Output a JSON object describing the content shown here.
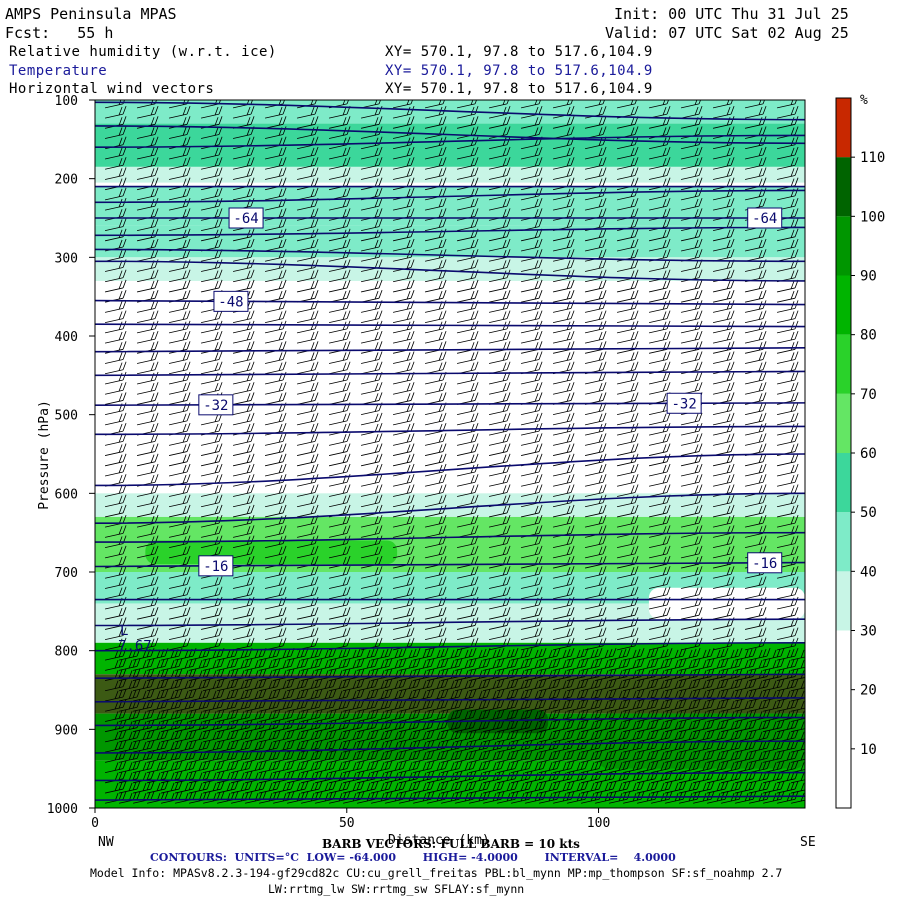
{
  "header": {
    "title": "AMPS Peninsula MPAS",
    "init": "Init: 00 UTC Thu 31 Jul 25",
    "fcst": "Fcst:   55 h",
    "valid": "Valid: 07 UTC Sat 02 Aug 25",
    "fields": [
      {
        "name": "Relative humidity (w.r.t. ice)",
        "xy": "XY= 570.1, 97.8 to 517.6,104.9",
        "color": "#000000"
      },
      {
        "name": "Temperature",
        "xy": "XY= 570.1, 97.8 to 517.6,104.9",
        "color": "#1a1a9a"
      },
      {
        "name": "Horizontal wind vectors",
        "xy": "XY= 570.1, 97.8 to 517.6,104.9",
        "color": "#000000"
      }
    ]
  },
  "chart_data": {
    "type": "heatmap",
    "subtype": "vertical cross-section",
    "ylabel": "Pressure (hPa)",
    "xlabel": "Distance (km)",
    "y_axis": {
      "ticks": [
        100,
        200,
        300,
        400,
        500,
        600,
        700,
        800,
        900,
        1000
      ],
      "range": [
        100,
        1000
      ],
      "inverted": true
    },
    "x_axis": {
      "ticks": [
        0,
        50,
        100
      ],
      "range": [
        0,
        141
      ],
      "left_label": "NW",
      "right_label": "SE"
    },
    "colorbar": {
      "unit": "%",
      "levels": [
        10,
        20,
        30,
        40,
        50,
        60,
        70,
        80,
        90,
        100,
        110
      ],
      "colors": [
        "#ffffff",
        "#ffffff",
        "#ffffff",
        "#c8f5e6",
        "#7eebc8",
        "#3cd79b",
        "#64e664",
        "#2ad22a",
        "#00b400",
        "#009600",
        "#006400",
        "#3c5a14",
        "#c82800"
      ]
    },
    "rh_layers": [
      {
        "p_top": 100,
        "p_bottom": 130,
        "rh": 40
      },
      {
        "p_top": 130,
        "p_bottom": 185,
        "rh": 55
      },
      {
        "p_top": 185,
        "p_bottom": 205,
        "rh": 35
      },
      {
        "p_top": 210,
        "p_bottom": 260,
        "rh": 45
      },
      {
        "p_top": 260,
        "p_bottom": 300,
        "rh": 40
      },
      {
        "p_top": 300,
        "p_bottom": 330,
        "rh": 30
      },
      {
        "p_top": 600,
        "p_bottom": 630,
        "rh": 30
      },
      {
        "p_top": 630,
        "p_bottom": 700,
        "rh": 60
      },
      {
        "p_top": 700,
        "p_bottom": 740,
        "rh": 45
      },
      {
        "p_top": 740,
        "p_bottom": 790,
        "rh": 35
      },
      {
        "p_top": 790,
        "p_bottom": 830,
        "rh": 85
      },
      {
        "p_top": 830,
        "p_bottom": 880,
        "rh": 112
      },
      {
        "p_top": 880,
        "p_bottom": 940,
        "rh": 95
      },
      {
        "p_top": 940,
        "p_bottom": 1000,
        "rh": 80
      }
    ],
    "temperature_contours": [
      {
        "label": "-64",
        "label_x": [
          30,
          133
        ],
        "p_left": 250,
        "p_right": 250
      },
      {
        "label": "-48",
        "label_x": [
          27
        ],
        "p_left": 355,
        "p_right": 360
      },
      {
        "label": "-32",
        "label_x": [
          24,
          117
        ],
        "p_left": 488,
        "p_right": 485
      },
      {
        "label": "-16",
        "label_x": [
          24,
          133
        ],
        "p_left": 693,
        "p_right": 688
      }
    ],
    "contour_levels_p": [
      [
        103,
        125
      ],
      [
        133,
        155
      ],
      [
        160,
        145
      ],
      [
        210,
        210
      ],
      [
        230,
        215
      ],
      [
        250,
        250
      ],
      [
        272,
        262
      ],
      [
        290,
        305
      ],
      [
        305,
        330
      ],
      [
        355,
        360
      ],
      [
        385,
        388
      ],
      [
        420,
        415
      ],
      [
        450,
        445
      ],
      [
        488,
        485
      ],
      [
        525,
        515
      ],
      [
        590,
        550
      ],
      [
        638,
        600
      ],
      [
        662,
        650
      ],
      [
        693,
        688
      ],
      [
        735,
        735
      ],
      [
        768,
        760
      ],
      [
        800,
        790
      ],
      [
        835,
        830
      ],
      [
        865,
        860
      ],
      [
        895,
        885
      ],
      [
        930,
        915
      ],
      [
        965,
        955
      ],
      [
        990,
        985
      ]
    ],
    "annotations": [
      "L",
      "7.67"
    ],
    "wind": {
      "description": "barb vectors",
      "full_barb": "10 kts",
      "direction": "from west-northwest"
    }
  },
  "footer": {
    "barb_text": "BARB VECTORS: FULL BARB = 10 kts",
    "distance_text": "Distance (km)",
    "contours_text": "CONTOURS:  UNITS=°C  LOW= -64.000       HIGH= -4.0000       INTERVAL=    4.0000",
    "model_info": "Model Info: MPASv8.2.3-194-gf29cd82c CU:cu_grell_freitas PBL:bl_mynn MP:mp_thompson SF:sf_noahmp 2.7",
    "physics": "LW:rrtmg_lw SW:rrtmg_sw SFLAY:sf_mynn"
  }
}
